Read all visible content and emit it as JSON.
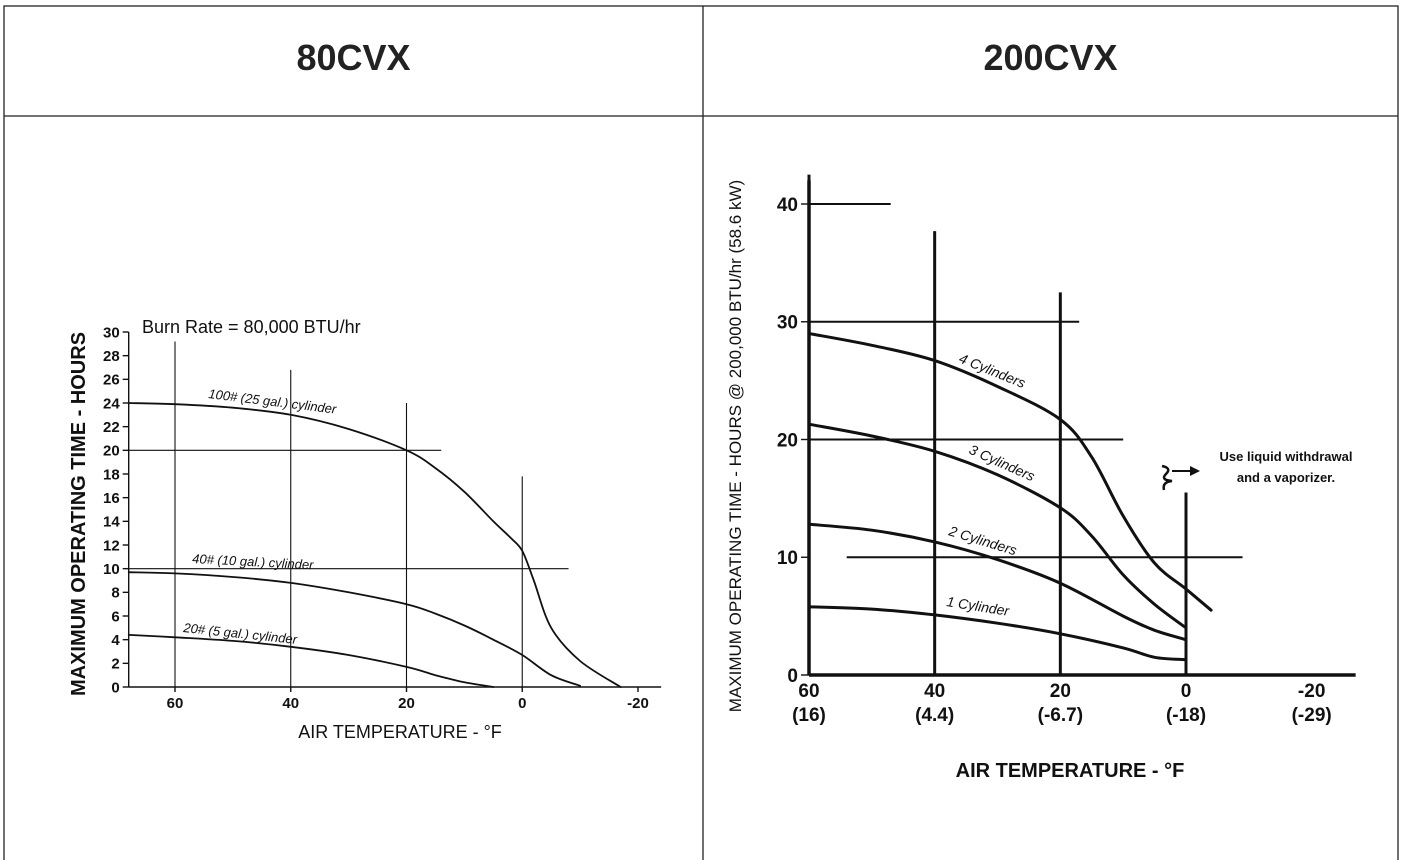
{
  "panels": {
    "left_title": "80CVX",
    "right_title": "200CVX"
  },
  "chart_data": [
    {
      "type": "line",
      "title": "80CVX",
      "annotation": "Burn Rate = 80,000 BTU/hr",
      "xlabel": "AIR TEMPERATURE - °F",
      "ylabel": "MAXIMUM OPERATING TIME - HOURS",
      "xlim": [
        68,
        -24
      ],
      "ylim": [
        0,
        30
      ],
      "x_ticks": [
        60,
        40,
        20,
        0,
        -20
      ],
      "x_tick_labels": [
        "60",
        "40",
        "20",
        "0",
        "-20"
      ],
      "y_ticks": [
        0,
        2,
        4,
        6,
        8,
        10,
        12,
        14,
        16,
        18,
        20,
        22,
        24,
        26,
        28,
        30
      ],
      "y_tick_labels": [
        "0",
        "2",
        "4",
        "6",
        "8",
        "10",
        "12",
        "14",
        "16",
        "18",
        "20",
        "22",
        "24",
        "26",
        "28",
        "30"
      ],
      "grid": "partial",
      "series": [
        {
          "name": "100# (25 gal.) cylinder",
          "x": [
            68,
            60,
            50,
            40,
            30,
            20,
            15,
            10,
            5,
            2,
            0,
            -2,
            -5,
            -10,
            -17
          ],
          "values": [
            24,
            23.9,
            23.6,
            23.0,
            21.8,
            20.0,
            18.5,
            16.5,
            14.0,
            12.6,
            11.5,
            9.0,
            5.0,
            2.2,
            0
          ]
        },
        {
          "name": "40# (10 gal.) cylinder",
          "x": [
            68,
            60,
            50,
            40,
            30,
            20,
            15,
            10,
            5,
            0,
            -5,
            -10
          ],
          "values": [
            9.7,
            9.6,
            9.3,
            8.8,
            8.0,
            7.0,
            6.2,
            5.2,
            4.0,
            2.7,
            1.0,
            0.1
          ]
        },
        {
          "name": "20# (5 gal.) cylinder",
          "x": [
            68,
            60,
            50,
            40,
            30,
            20,
            15,
            10,
            5
          ],
          "values": [
            4.4,
            4.2,
            3.9,
            3.4,
            2.7,
            1.7,
            1.0,
            0.4,
            0
          ]
        }
      ],
      "lines": {
        "h": [
          {
            "y": 20,
            "x1": 68,
            "x2": 14
          },
          {
            "y": 10,
            "x1": 68,
            "x2": -8
          }
        ],
        "v": [
          {
            "x": 60,
            "y2": 29.2
          },
          {
            "x": 40,
            "y2": 26.8
          },
          {
            "x": 20,
            "y2": 24
          },
          {
            "x": 0,
            "y2": 17.8
          }
        ]
      }
    },
    {
      "type": "line",
      "title": "200CVX",
      "annotation": "Use liquid withdrawal and a vaporizer.",
      "annotation_lines": [
        "Use liquid withdrawal",
        "and a vaporizer."
      ],
      "xlabel": "AIR TEMPERATURE - °F",
      "ylabel": "MAXIMUM OPERATING TIME - HOURS @ 200,000 BTU/hr (58.6 kW)",
      "xlim": [
        60,
        -27
      ],
      "ylim": [
        0,
        42
      ],
      "x_ticks": [
        60,
        40,
        20,
        0,
        -20
      ],
      "x_tick_labels": [
        "60",
        "40",
        "20",
        "0",
        "-20"
      ],
      "x_tick_sublabels": [
        "(16)",
        "(4.4)",
        "(-6.7)",
        "(-18)",
        "(-29)"
      ],
      "y_ticks": [
        0,
        10,
        20,
        30,
        40
      ],
      "y_tick_labels": [
        "0",
        "10",
        "20",
        "30",
        "40"
      ],
      "grid": "partial",
      "series": [
        {
          "name": "4 Cylinders",
          "x": [
            60,
            50,
            40,
            30,
            20,
            15,
            10,
            5,
            0,
            -4
          ],
          "values": [
            29,
            28,
            26.7,
            24.5,
            21.7,
            18.5,
            13.5,
            9.5,
            7.3,
            5.5
          ]
        },
        {
          "name": "3 Cylinders",
          "x": [
            60,
            50,
            40,
            30,
            20,
            15,
            10,
            5,
            0
          ],
          "values": [
            21.3,
            20.3,
            19.0,
            17.0,
            14.2,
            11.8,
            8.5,
            6.0,
            4.0
          ]
        },
        {
          "name": "2 Cylinders",
          "x": [
            60,
            50,
            40,
            30,
            20,
            10,
            5,
            0
          ],
          "values": [
            12.8,
            12.3,
            11.3,
            9.8,
            7.8,
            5.0,
            3.8,
            3.0
          ]
        },
        {
          "name": "1 Cylinder",
          "x": [
            60,
            50,
            40,
            30,
            20,
            10,
            5,
            0
          ],
          "values": [
            5.8,
            5.6,
            5.1,
            4.4,
            3.5,
            2.3,
            1.5,
            1.3
          ]
        }
      ],
      "lines": {
        "h": [
          {
            "y": 40,
            "x1": 60,
            "x2": 47
          },
          {
            "y": 30,
            "x1": 60,
            "x2": 17
          },
          {
            "y": 20,
            "x1": 60,
            "x2": 10
          },
          {
            "y": 10,
            "x1": 54,
            "x2": -9
          }
        ],
        "v": [
          {
            "x": 60,
            "y2": 42.5
          },
          {
            "x": 40,
            "y2": 37.7
          },
          {
            "x": 20,
            "y2": 32.5
          },
          {
            "x": 0,
            "y2": 15.5
          }
        ]
      }
    }
  ]
}
